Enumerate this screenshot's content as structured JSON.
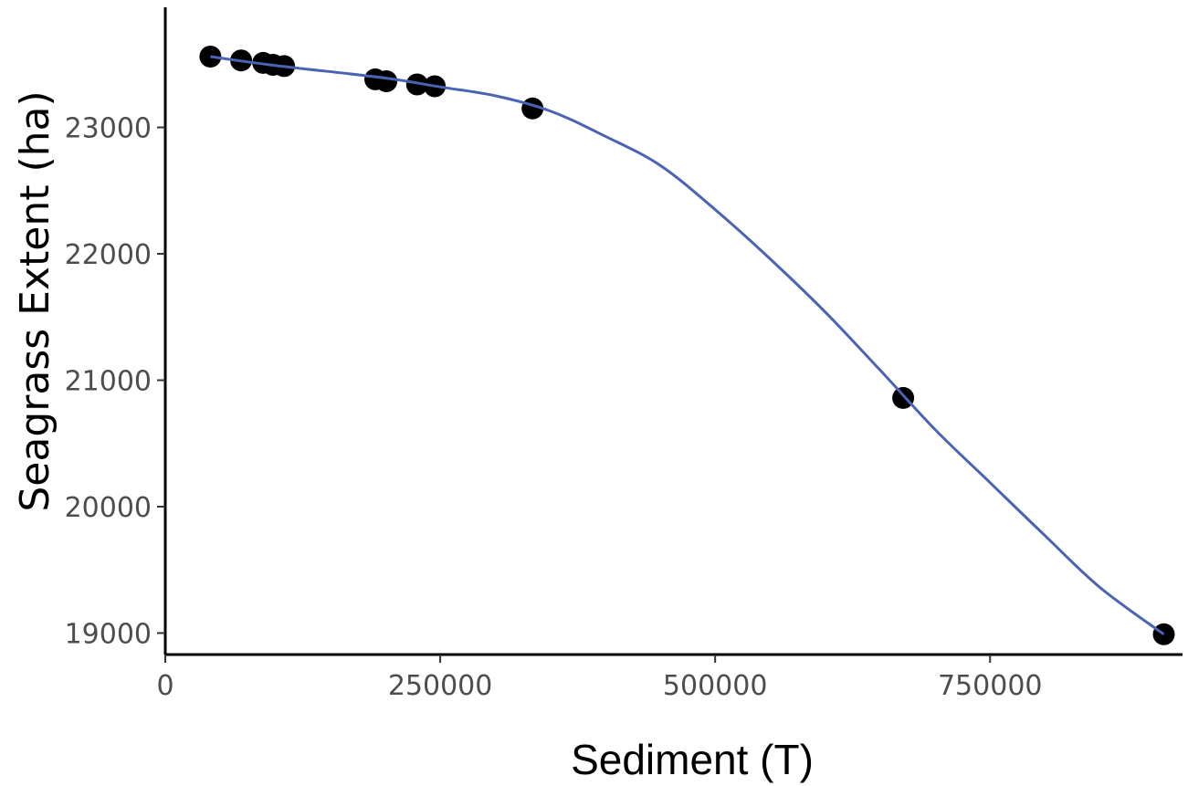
{
  "chart_data": {
    "type": "scatter",
    "title": "",
    "xlabel": "Sediment (T)",
    "ylabel": "Seagrass Extent (ha)",
    "xlim": [
      0,
      925000
    ],
    "ylim": [
      18830,
      23950
    ],
    "x_ticks": [
      0,
      250000,
      500000,
      750000
    ],
    "x_tick_labels": [
      "0",
      "250000",
      "500000",
      "750000"
    ],
    "y_ticks": [
      19000,
      20000,
      21000,
      22000,
      23000
    ],
    "y_tick_labels": [
      "19000",
      "20000",
      "21000",
      "22000",
      "23000"
    ],
    "grid": false,
    "legend": "none",
    "series": [
      {
        "kind": "points",
        "color": "#000000",
        "points": [
          {
            "x": 41000,
            "y": 23560
          },
          {
            "x": 69000,
            "y": 23530
          },
          {
            "x": 89000,
            "y": 23510
          },
          {
            "x": 98000,
            "y": 23495
          },
          {
            "x": 108000,
            "y": 23485
          },
          {
            "x": 191000,
            "y": 23380
          },
          {
            "x": 201000,
            "y": 23365
          },
          {
            "x": 229000,
            "y": 23340
          },
          {
            "x": 245000,
            "y": 23325
          },
          {
            "x": 334000,
            "y": 23150
          },
          {
            "x": 671000,
            "y": 20860
          },
          {
            "x": 908000,
            "y": 18990
          }
        ]
      },
      {
        "kind": "smooth-line",
        "color": "#4a64b3",
        "points": [
          {
            "x": 41000,
            "y": 23560
          },
          {
            "x": 100000,
            "y": 23490
          },
          {
            "x": 200000,
            "y": 23390
          },
          {
            "x": 250000,
            "y": 23320
          },
          {
            "x": 300000,
            "y": 23250
          },
          {
            "x": 350000,
            "y": 23130
          },
          {
            "x": 400000,
            "y": 22930
          },
          {
            "x": 450000,
            "y": 22700
          },
          {
            "x": 500000,
            "y": 22350
          },
          {
            "x": 550000,
            "y": 21960
          },
          {
            "x": 600000,
            "y": 21540
          },
          {
            "x": 650000,
            "y": 21080
          },
          {
            "x": 700000,
            "y": 20610
          },
          {
            "x": 750000,
            "y": 20190
          },
          {
            "x": 800000,
            "y": 19770
          },
          {
            "x": 850000,
            "y": 19360
          },
          {
            "x": 908000,
            "y": 18990
          }
        ]
      }
    ]
  }
}
